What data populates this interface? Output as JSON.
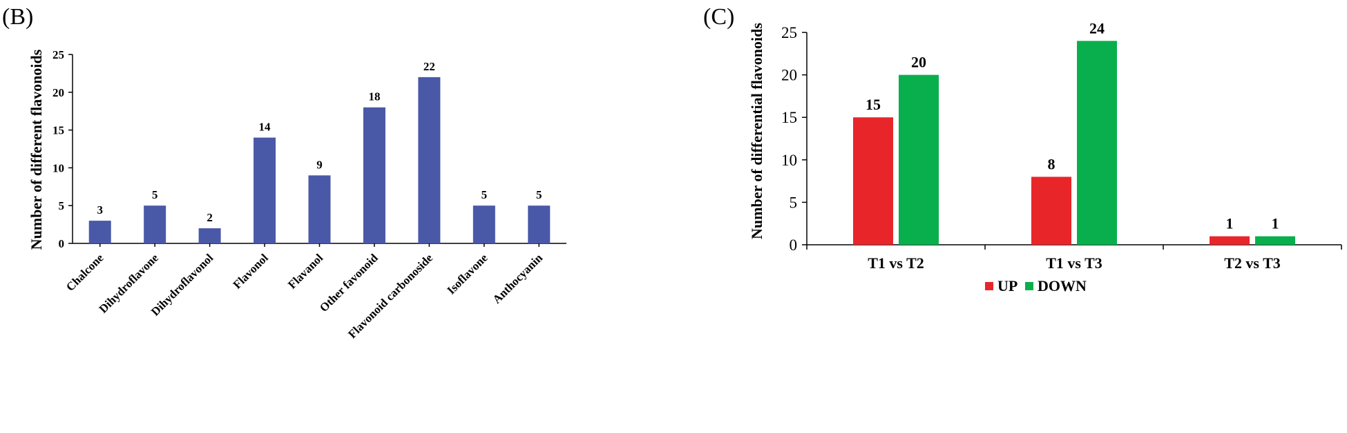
{
  "colors": {
    "blue": "#4a58a8",
    "red": "#e8262a",
    "green": "#0aaf4d",
    "axis": "#000000",
    "text": "#000000"
  },
  "chart_data": [
    {
      "panel_label": "(B)",
      "type": "bar",
      "title": "",
      "xlabel": "",
      "ylabel": "Number of different flavonoids",
      "ylim": [
        0,
        25
      ],
      "yticks": [
        0,
        5,
        10,
        15,
        20,
        25
      ],
      "grid": false,
      "categories": [
        "Chalcone",
        "Dihydroflavone",
        "Dihydroflavonol",
        "Flavonol",
        "Flavanol",
        "Other favonoid",
        "Flavonoid carbonoside",
        "Isoflavone",
        "Anthocyanin"
      ],
      "series": [
        {
          "name": "Number of different flavonoids",
          "color": "#4a58a8",
          "values": [
            3,
            5,
            2,
            14,
            9,
            18,
            22,
            5,
            5
          ]
        }
      ],
      "data_labels": [
        "3",
        "5",
        "2",
        "14",
        "9",
        "18",
        "22",
        "5",
        "5"
      ]
    },
    {
      "panel_label": "(C)",
      "type": "bar",
      "title": "",
      "xlabel": "",
      "ylabel": "Number of differential flavonoids",
      "ylim": [
        0,
        25
      ],
      "yticks": [
        0,
        5,
        10,
        15,
        20,
        25
      ],
      "grid": false,
      "legend_position": "bottom",
      "categories": [
        "T1 vs T2",
        "T1 vs T3",
        "T2 vs T3"
      ],
      "series": [
        {
          "name": "UP",
          "color": "#e8262a",
          "values": [
            15,
            8,
            1
          ],
          "data_labels": [
            "15",
            "8",
            "1"
          ]
        },
        {
          "name": "DOWN",
          "color": "#0aaf4d",
          "values": [
            20,
            24,
            1
          ],
          "data_labels": [
            "20",
            "24",
            "1"
          ]
        }
      ]
    }
  ]
}
